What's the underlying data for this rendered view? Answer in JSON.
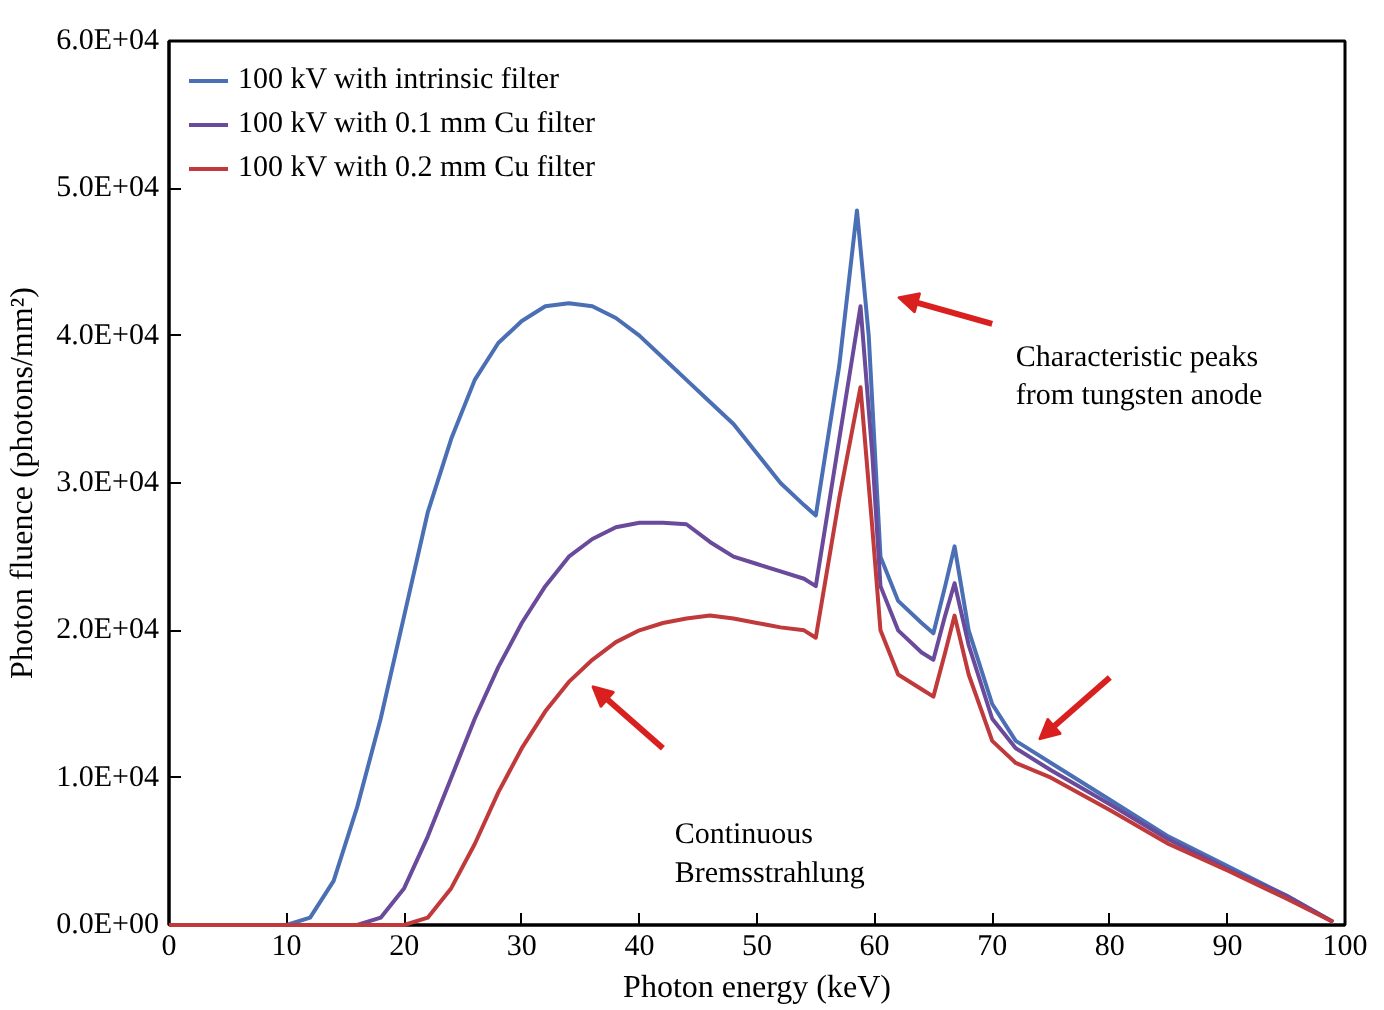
{
  "chart_data": {
    "type": "line",
    "xlabel": "Photon energy (keV)",
    "ylabel": "Photon fluence (photons/mm²)",
    "xlim": [
      0,
      100
    ],
    "xticks": [
      0,
      10,
      20,
      30,
      40,
      50,
      60,
      70,
      80,
      90,
      100
    ],
    "ylim": [
      0,
      60000
    ],
    "yticks": [
      {
        "value": 0,
        "label": "0.0E+00"
      },
      {
        "value": 10000,
        "label": "1.0E+04"
      },
      {
        "value": 20000,
        "label": "2.0E+04"
      },
      {
        "value": 30000,
        "label": "3.0E+04"
      },
      {
        "value": 40000,
        "label": "4.0E+04"
      },
      {
        "value": 50000,
        "label": "5.0E+04"
      },
      {
        "value": 60000,
        "label": "6.0E+04"
      }
    ],
    "grid": false,
    "legend": "top left",
    "line_style": "solid",
    "annotations": [
      "Characteristic peaks\nfrom tungsten anode",
      "Continuous\nBremsstrahlung"
    ],
    "series": [
      {
        "name": "100 kV with intrinsic filter",
        "color": "#4a6fb5",
        "x": [
          0,
          10,
          12,
          14,
          16,
          18,
          20,
          22,
          24,
          26,
          28,
          30,
          32,
          34,
          36,
          38,
          40,
          42,
          44,
          46,
          48,
          50,
          52,
          54,
          55,
          57,
          58.5,
          59.5,
          60.5,
          62,
          64,
          65,
          66,
          66.8,
          68,
          70,
          72,
          75,
          80,
          85,
          90,
          95,
          99
        ],
        "values": [
          0,
          0,
          500,
          3000,
          8000,
          14000,
          21000,
          28000,
          33000,
          37000,
          39500,
          41000,
          42000,
          42200,
          42000,
          41200,
          40000,
          38500,
          37000,
          35500,
          34000,
          32000,
          30000,
          28500,
          27800,
          38000,
          48500,
          40000,
          25000,
          22000,
          20500,
          19800,
          23000,
          25700,
          20000,
          15000,
          12500,
          11000,
          8500,
          6000,
          4000,
          2000,
          200
        ]
      },
      {
        "name": "100 kV with 0.1 mm Cu filter",
        "color": "#6a4a9a",
        "x": [
          0,
          16,
          18,
          20,
          22,
          24,
          26,
          28,
          30,
          32,
          34,
          36,
          38,
          40,
          42,
          44,
          46,
          48,
          50,
          52,
          54,
          55,
          57,
          58.8,
          59.8,
          60.5,
          62,
          64,
          65,
          66,
          66.8,
          68,
          70,
          72,
          75,
          80,
          85,
          90,
          95,
          99
        ],
        "values": [
          0,
          0,
          500,
          2500,
          6000,
          10000,
          14000,
          17500,
          20500,
          23000,
          25000,
          26200,
          27000,
          27300,
          27300,
          27200,
          26000,
          25000,
          24500,
          24000,
          23500,
          23000,
          33000,
          42000,
          32000,
          23000,
          20000,
          18500,
          18000,
          21000,
          23200,
          19000,
          14000,
          12000,
          10500,
          8200,
          5800,
          3800,
          2000,
          200
        ]
      },
      {
        "name": "100 kV with 0.2 mm Cu filter",
        "color": "#c0393b",
        "x": [
          0,
          20,
          22,
          24,
          26,
          28,
          30,
          32,
          34,
          36,
          38,
          40,
          42,
          44,
          46,
          48,
          50,
          52,
          54,
          55,
          57,
          58.8,
          59.8,
          60.5,
          62,
          64,
          65,
          66,
          66.8,
          68,
          70,
          72,
          75,
          80,
          85,
          90,
          95,
          99
        ],
        "values": [
          0,
          0,
          500,
          2500,
          5500,
          9000,
          12000,
          14500,
          16500,
          18000,
          19200,
          20000,
          20500,
          20800,
          21000,
          20800,
          20500,
          20200,
          20000,
          19500,
          29000,
          36500,
          27000,
          20000,
          17000,
          16000,
          15500,
          18500,
          21000,
          17000,
          12500,
          11000,
          10000,
          7800,
          5500,
          3700,
          1800,
          200
        ]
      }
    ]
  }
}
